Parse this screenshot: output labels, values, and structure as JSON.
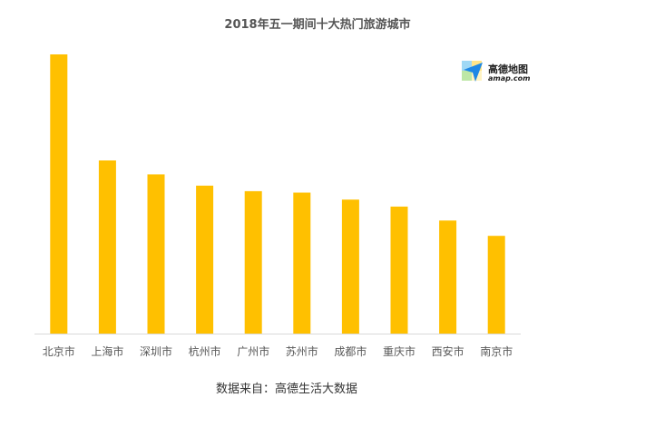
{
  "chart_data": {
    "type": "bar",
    "title": "2018年五一期间十大热门旅游城市",
    "categories": [
      "北京市",
      "上海市",
      "深圳市",
      "杭州市",
      "广州市",
      "苏州市",
      "成都市",
      "重庆市",
      "西安市",
      "南京市"
    ],
    "values": [
      100,
      62,
      57,
      53,
      51,
      50.5,
      48,
      45.5,
      40.5,
      35
    ],
    "bar_color": "#FFC000",
    "ylim": [
      0,
      100
    ],
    "grid": false,
    "legend": "none"
  },
  "source": "数据来自：高德生活大数据",
  "logo": {
    "name": "高德地图",
    "sub": "amap.com"
  }
}
